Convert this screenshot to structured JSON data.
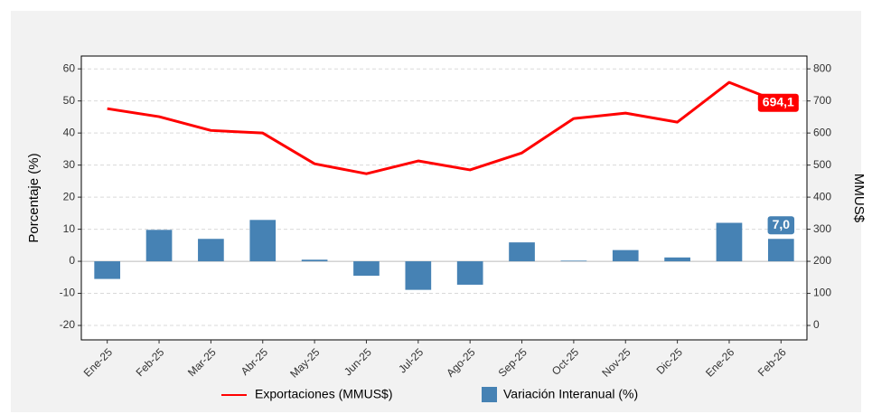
{
  "chart_data": {
    "type": "bar",
    "categories": [
      "Ene-25",
      "Feb-25",
      "Mar-25",
      "Abr-25",
      "May-25",
      "Jun-25",
      "Jul-25",
      "Ago-25",
      "Sep-25",
      "Oct-25",
      "Nov-25",
      "Dic-25",
      "Ene-26",
      "Feb-26"
    ],
    "series": [
      {
        "name": "Exportaciones (MMUS$)",
        "type": "line",
        "axis": "y2",
        "color": "#ff0000",
        "values": [
          676,
          651,
          608,
          600,
          504,
          473,
          513,
          485,
          538,
          645,
          662,
          634,
          758,
          694.1
        ],
        "value_labels": [
          null,
          null,
          null,
          null,
          null,
          null,
          null,
          null,
          null,
          null,
          null,
          null,
          null,
          "694,1"
        ]
      },
      {
        "name": "Variación Interanual (%)",
        "type": "bar",
        "color": "#4682b4",
        "values": [
          -5.5,
          9.8,
          7.0,
          12.9,
          0.5,
          -4.5,
          -8.9,
          -7.3,
          5.9,
          0.2,
          3.5,
          1.2,
          12.0,
          7.0
        ],
        "value_labels": [
          null,
          null,
          null,
          null,
          null,
          null,
          null,
          null,
          null,
          null,
          null,
          null,
          null,
          "7,0"
        ]
      }
    ],
    "y_label": "Porcentaje (%)",
    "y2_label": "MMUS$",
    "ylim": [
      -24.5,
      64
    ],
    "yticks": [
      -20,
      -10,
      0,
      10,
      20,
      30,
      40,
      50,
      60
    ],
    "y2lim": [
      -45,
      840
    ],
    "y2ticks": [
      0,
      100,
      200,
      300,
      400,
      500,
      600,
      700,
      800
    ],
    "grid": true,
    "legend": "bottom"
  }
}
